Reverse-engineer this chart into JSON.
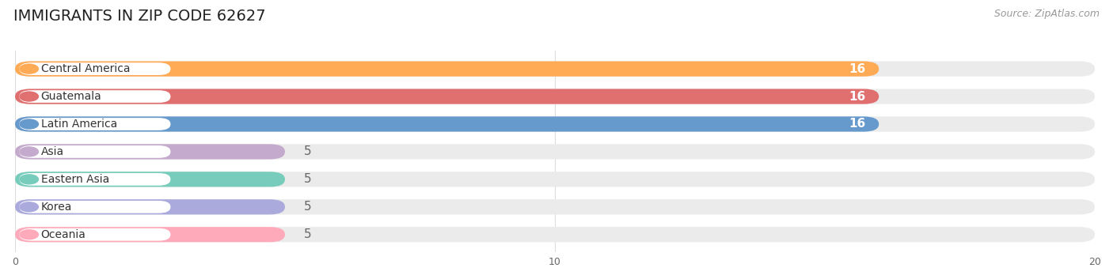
{
  "title": "IMMIGRANTS IN ZIP CODE 62627",
  "source": "Source: ZipAtlas.com",
  "categories": [
    "Central America",
    "Guatemala",
    "Latin America",
    "Asia",
    "Eastern Asia",
    "Korea",
    "Oceania"
  ],
  "values": [
    16,
    16,
    16,
    5,
    5,
    5,
    5
  ],
  "bar_colors": [
    "#FFAA55",
    "#E07070",
    "#6699CC",
    "#C4AACC",
    "#77CCBB",
    "#AAAADD",
    "#FFAABB"
  ],
  "bar_bg_color": "#EBEBEB",
  "dot_colors": [
    "#FFAA55",
    "#E07070",
    "#6699CC",
    "#C4AACC",
    "#77CCBB",
    "#AAAADD",
    "#FFAABB"
  ],
  "xlim": [
    0,
    20
  ],
  "xticks": [
    0,
    10,
    20
  ],
  "value_label_color_high": "#FFFFFF",
  "value_label_color_low": "#666666",
  "value_threshold": 10,
  "title_fontsize": 14,
  "source_fontsize": 9,
  "label_fontsize": 10,
  "value_fontsize": 11,
  "background_color": "#FFFFFF",
  "bar_height": 0.55,
  "bar_gap": 0.35,
  "figsize": [
    14.06,
    3.53
  ]
}
